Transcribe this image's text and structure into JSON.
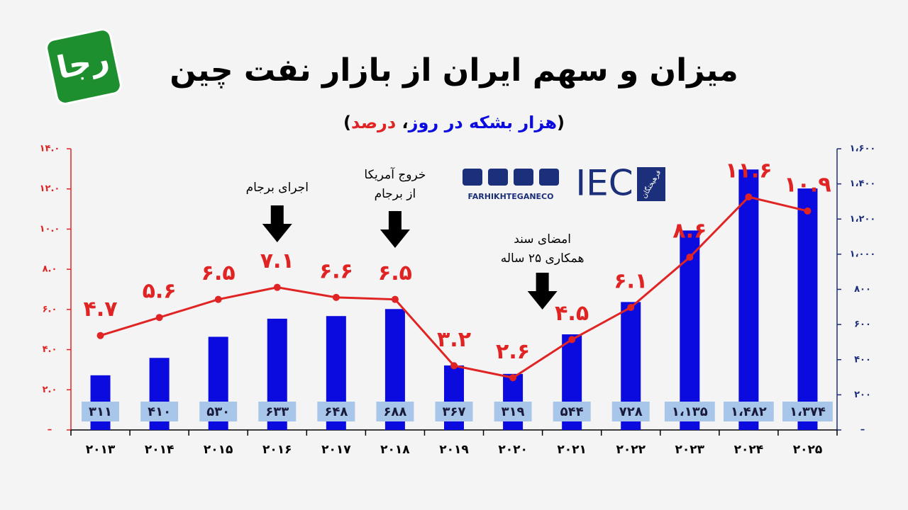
{
  "chart_data": {
    "type": "bar_line",
    "title": "میزان و سهم ایران از بازار نفت چین",
    "subtitle": [
      "(",
      "هزار بشکه در روز",
      "، ",
      "درصد",
      ")"
    ],
    "categories": [
      "۲۰۱۳",
      "۲۰۱۴",
      "۲۰۱۵",
      "۲۰۱۶",
      "۲۰۱۷",
      "۲۰۱۸",
      "۲۰۱۹",
      "۲۰۲۰",
      "۲۰۲۱",
      "۲۰۲۲",
      "۲۰۲۳",
      "۲۰۲۴",
      "۲۰۲۵"
    ],
    "series": [
      {
        "type": "bar",
        "axis": "y2",
        "color": "#0b0be0",
        "values": [
          311,
          410,
          530,
          633,
          648,
          688,
          367,
          319,
          544,
          728,
          1135,
          1482,
          1374
        ],
        "value_labels": [
          "۳۱۱",
          "۴۱۰",
          "۵۳۰",
          "۶۳۳",
          "۶۴۸",
          "۶۸۸",
          "۳۶۷",
          "۳۱۹",
          "۵۴۴",
          "۷۲۸",
          "۱،۱۳۵",
          "۱،۴۸۲",
          "۱،۳۷۴"
        ]
      },
      {
        "type": "line",
        "axis": "y",
        "color": "#e02424",
        "values": [
          4.7,
          5.6,
          6.5,
          7.1,
          6.6,
          6.5,
          3.2,
          2.6,
          4.5,
          6.1,
          8.6,
          11.6,
          10.9
        ],
        "value_labels": [
          "۴.۷",
          "۵.۶",
          "۶.۵",
          "۷.۱",
          "۶.۶",
          "۶.۵",
          "۳.۲",
          "۲.۶",
          "۴.۵",
          "۶.۱",
          "۸.۶",
          "۱۱.۶",
          "۱۰.۹"
        ]
      }
    ],
    "ylim": [
      0,
      14
    ],
    "yticks": [
      {
        "value": 0,
        "label": "–"
      },
      {
        "value": 2,
        "label": "۲.۰"
      },
      {
        "value": 4,
        "label": "۴.۰"
      },
      {
        "value": 6,
        "label": "۶.۰"
      },
      {
        "value": 8,
        "label": "۸.۰"
      },
      {
        "value": 10,
        "label": "۱۰.۰"
      },
      {
        "value": 12,
        "label": "۱۲.۰"
      },
      {
        "value": 14,
        "label": "۱۴.۰"
      }
    ],
    "y2lim": [
      0,
      1600
    ],
    "y2ticks": [
      {
        "value": 0,
        "label": "–"
      },
      {
        "value": 200,
        "label": "۲۰۰"
      },
      {
        "value": 400,
        "label": "۴۰۰"
      },
      {
        "value": 600,
        "label": "۶۰۰"
      },
      {
        "value": 800,
        "label": "۸۰۰"
      },
      {
        "value": 1000,
        "label": "۱،۰۰۰"
      },
      {
        "value": 1200,
        "label": "۱،۲۰۰"
      },
      {
        "value": 1400,
        "label": "۱،۴۰۰"
      },
      {
        "value": 1600,
        "label": "۱،۶۰۰"
      }
    ],
    "annotations": [
      {
        "lines": [
          "اجرای برجام"
        ]
      },
      {
        "lines": [
          "خروج آمریکا",
          "از برجام"
        ]
      },
      {
        "lines": [
          "امضای سند",
          "همکاری ۲۵ ساله"
        ]
      }
    ]
  },
  "branding": {
    "logo": "رجا",
    "brand": "IEC",
    "brand_name": "فرهیختگان",
    "handle": "FARHIKHTEGANECO"
  }
}
